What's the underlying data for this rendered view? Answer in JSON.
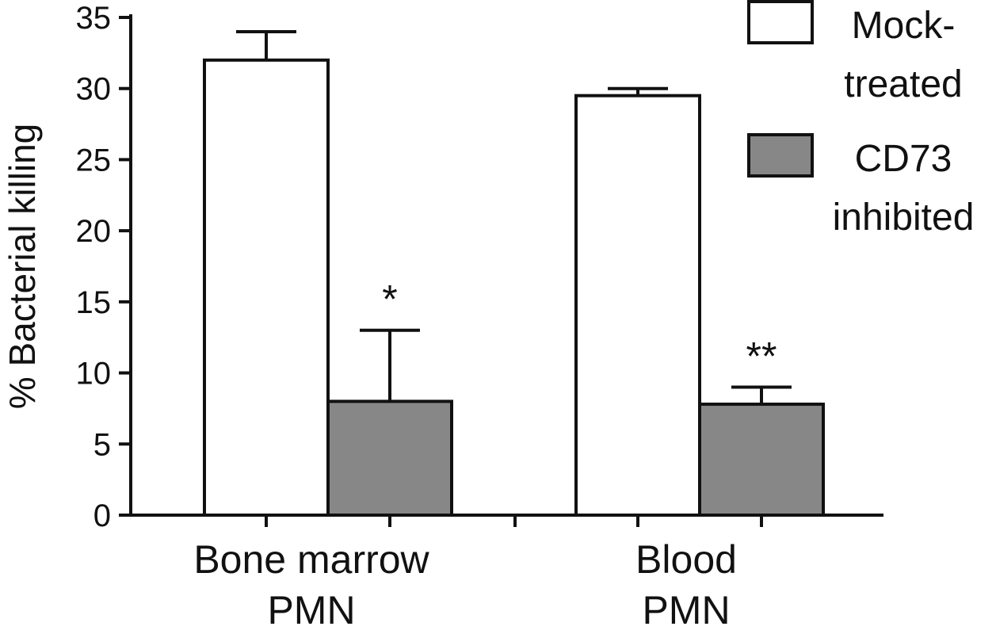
{
  "chart_data": {
    "type": "bar",
    "ylabel": "% Bacterial killing",
    "ylim": [
      0,
      35
    ],
    "yticks": [
      0,
      5,
      10,
      15,
      20,
      25,
      30,
      35
    ],
    "categories": [
      {
        "lines": [
          "Bone marrow",
          "PMN"
        ]
      },
      {
        "lines": [
          "Blood",
          "PMN"
        ]
      }
    ],
    "series": [
      {
        "name_lines": [
          "Mock-",
          "treated"
        ],
        "color": "#ffffff",
        "values": [
          32,
          29.5
        ],
        "errors": [
          2,
          0.5
        ]
      },
      {
        "name_lines": [
          "CD73",
          "inhibited"
        ],
        "color": "#878787",
        "values": [
          8,
          7.8
        ],
        "errors": [
          5,
          1.2
        ]
      }
    ],
    "annotations": [
      {
        "category": 0,
        "series": 1,
        "text": "*"
      },
      {
        "category": 1,
        "series": 1,
        "text": "**"
      }
    ],
    "legend": "top-right",
    "grid": false
  }
}
